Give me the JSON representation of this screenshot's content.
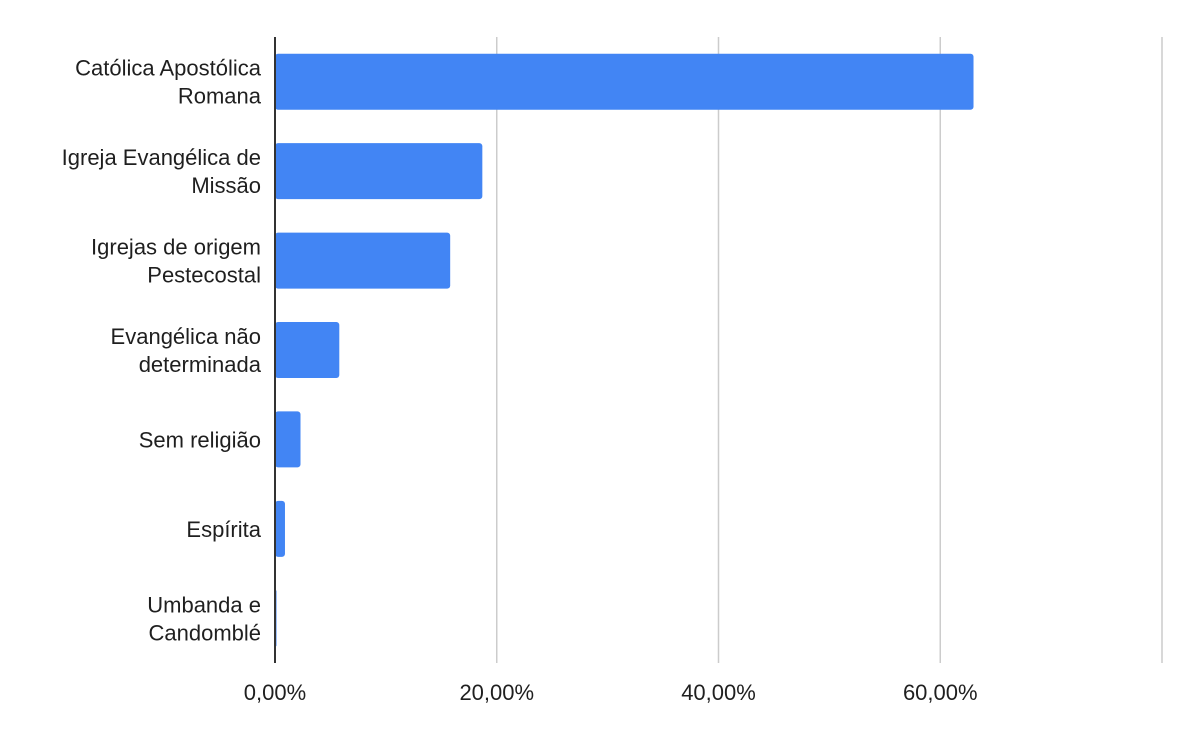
{
  "chart_data": {
    "type": "bar",
    "orientation": "horizontal",
    "title": "",
    "xlabel": "",
    "ylabel": "",
    "categories": [
      [
        "Católica Apostólica",
        "Romana"
      ],
      [
        "Igreja Evangélica de",
        "Missão"
      ],
      [
        "Igrejas de origem",
        "Pestecostal"
      ],
      [
        "Evangélica não",
        "determinada"
      ],
      [
        "Sem religião"
      ],
      [
        "Espírita"
      ],
      [
        "Umbanda e",
        "Candomblé"
      ]
    ],
    "values": [
      63.0,
      18.7,
      15.8,
      5.8,
      2.3,
      0.9,
      0.1
    ],
    "xlim": [
      0,
      80
    ],
    "xticks": [
      0,
      20,
      40,
      60,
      80
    ],
    "xtick_labels": [
      "0,00%",
      "20,00%",
      "40,00%",
      "60,00%",
      ""
    ],
    "grid": true,
    "legend": "none",
    "colors": {
      "bar": "#4285f4",
      "grid": "#cccccc",
      "axis": "#333333"
    }
  }
}
